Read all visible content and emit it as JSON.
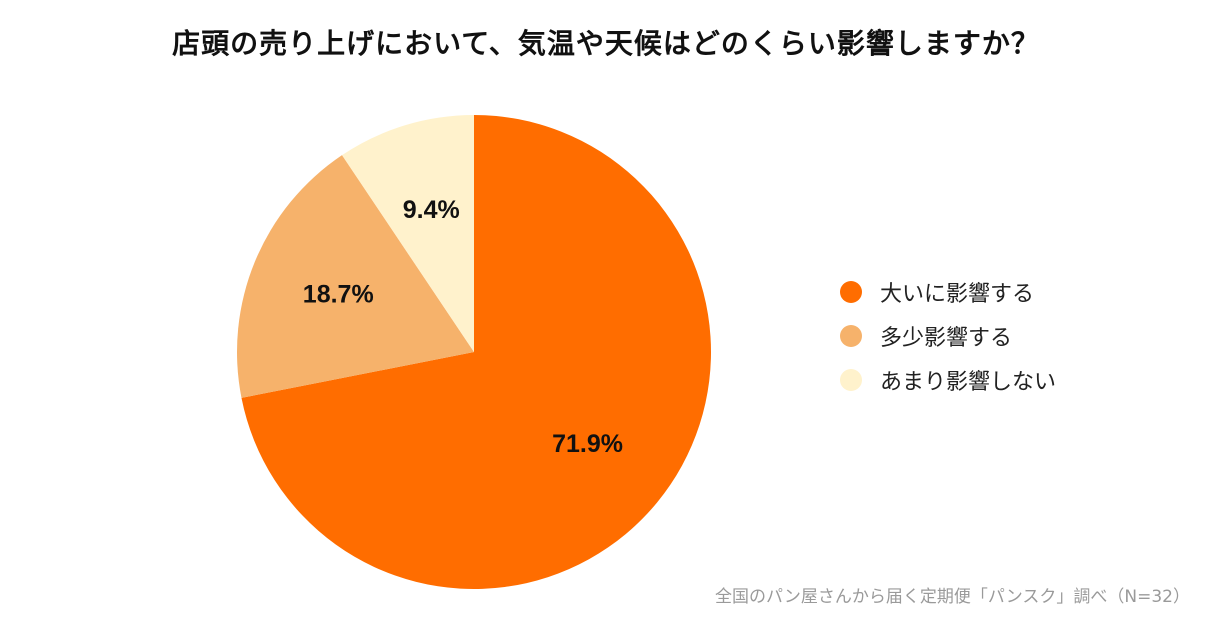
{
  "title": "店頭の売り上げにおいて、気温や天候はどのくらい影響しますか？",
  "source": "全国のパン屋さんから届く定期便「パンスク」調べ（N=32）",
  "chart_data": {
    "type": "pie",
    "title": "店頭の売り上げにおいて、気温や天候はどのくらい影響しますか？",
    "categories": [
      "大いに影響する",
      "多少影響する",
      "あまり影響しない"
    ],
    "values": [
      71.9,
      18.7,
      9.4
    ],
    "value_labels": [
      "71.9%",
      "18.7%",
      "9.4%"
    ],
    "colors": [
      "#ff6d00",
      "#f6b26b",
      "#fff2cc"
    ],
    "legend_position": "right"
  }
}
